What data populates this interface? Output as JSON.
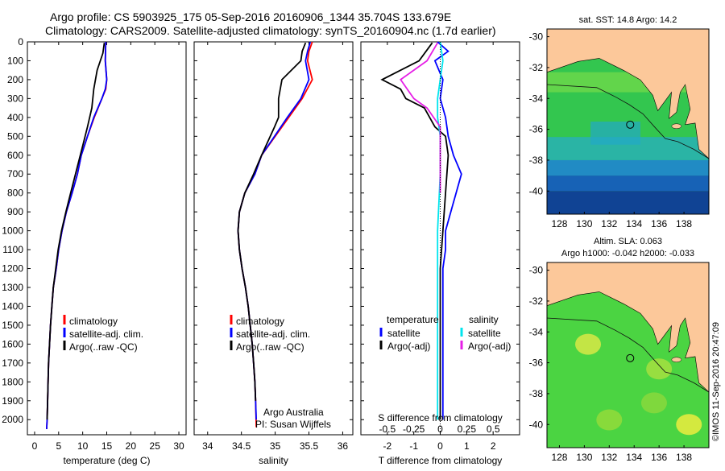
{
  "header": {
    "line1": "Argo profile: CS 5903925_175 05-Sep-2016 20160906_1344 35.704S 133.679E",
    "line2": "Climatology: CARS2009. Satellite-adjusted climatology: synTS_20160904.nc (1.7d earlier)"
  },
  "colors": {
    "climatology": "#ff0000",
    "satellite": "#0000ff",
    "argo": "#000000",
    "sal_sat": "#00e5ee",
    "sal_argo": "#e61ee6",
    "land": "#fcc89a"
  },
  "chart_data": [
    {
      "type": "line",
      "id": "temperature",
      "xlabel": "temperature (deg C)",
      "xlim": [
        -1.5,
        31.5
      ],
      "ylim": [
        2080,
        0
      ],
      "xticks": [
        0,
        5,
        10,
        15,
        20,
        25,
        30
      ],
      "yticks": [
        0,
        100,
        200,
        300,
        400,
        500,
        600,
        700,
        800,
        900,
        1000,
        1100,
        1200,
        1300,
        1400,
        1500,
        1600,
        1700,
        1800,
        1900,
        2000
      ],
      "legend": [
        "climatology",
        "satellite-adj. clim.",
        "Argo(..raw -QC)"
      ],
      "series": [
        {
          "name": "climatology",
          "color": "#ff0000",
          "x": [
            14.8,
            14.7,
            15.0,
            14.8,
            14.0,
            12.4,
            11.0,
            9.7,
            8.9,
            7.8,
            6.6,
            5.7,
            5.0,
            4.5,
            3.9,
            3.6,
            3.3,
            3.1,
            2.9,
            2.8,
            2.7,
            2.6,
            2.5
          ],
          "y": [
            0,
            100,
            200,
            250,
            300,
            400,
            500,
            600,
            700,
            800,
            900,
            1000,
            1100,
            1200,
            1300,
            1400,
            1500,
            1600,
            1700,
            1800,
            1900,
            2000,
            2050
          ]
        },
        {
          "name": "satellite-adj. clim.",
          "color": "#0000ff",
          "x": [
            14.8,
            14.7,
            15.0,
            14.7,
            14.0,
            12.3,
            11.0,
            9.7,
            8.9,
            7.8,
            6.6,
            5.7,
            5.0,
            4.5,
            3.9,
            3.6,
            3.3,
            3.1,
            2.9,
            2.8,
            2.7,
            2.6,
            2.5
          ],
          "y": [
            0,
            100,
            200,
            250,
            300,
            400,
            500,
            600,
            700,
            800,
            900,
            1000,
            1100,
            1200,
            1300,
            1400,
            1500,
            1600,
            1700,
            1800,
            1900,
            2000,
            2050
          ]
        },
        {
          "name": "Argo(..raw -QC)",
          "color": "#000000",
          "x": [
            14.5,
            14.2,
            13.0,
            12.3,
            11.9,
            11.0,
            10.0,
            9.0,
            7.5,
            6.5,
            5.6,
            4.9,
            4.4,
            3.9,
            3.6,
            3.3,
            3.1,
            2.9,
            2.8,
            2.7,
            2.6
          ],
          "y": [
            5,
            60,
            150,
            250,
            350,
            450,
            550,
            650,
            800,
            900,
            1000,
            1100,
            1200,
            1300,
            1400,
            1500,
            1600,
            1700,
            1800,
            1900,
            2000
          ]
        }
      ]
    },
    {
      "type": "line",
      "id": "salinity",
      "xlabel": "salinity",
      "xlim": [
        33.8,
        36.15
      ],
      "ylim": [
        2080,
        0
      ],
      "xticks": [
        34,
        34.5,
        35,
        35.5,
        36
      ],
      "xticklabels": [
        "34",
        "34.5",
        "35",
        "35.5",
        "36"
      ],
      "legend": [
        "climatology",
        "satellite-adj. clim.",
        "Argo(..raw -QC)"
      ],
      "annotations": [
        "Argo Australia",
        "PI: Susan Wijffels"
      ],
      "series": [
        {
          "name": "climatology",
          "color": "#ff0000",
          "x": [
            35.55,
            35.5,
            35.48,
            35.55,
            35.4,
            35.2,
            35.0,
            34.8,
            34.7,
            34.55,
            34.47,
            34.45,
            34.47,
            34.51,
            34.56,
            34.6,
            34.63,
            34.66,
            34.68,
            34.7,
            34.71,
            34.72
          ],
          "y": [
            0,
            50,
            100,
            200,
            300,
            400,
            500,
            600,
            700,
            800,
            900,
            1000,
            1100,
            1200,
            1300,
            1400,
            1500,
            1600,
            1700,
            1800,
            1900,
            2040
          ]
        },
        {
          "name": "satellite-adj. clim.",
          "color": "#0000ff",
          "x": [
            35.52,
            35.48,
            35.45,
            35.5,
            35.38,
            35.18,
            34.99,
            34.8,
            34.7,
            34.55,
            34.47,
            34.45,
            34.47,
            34.51,
            34.56,
            34.6,
            34.63,
            34.66,
            34.68,
            34.7,
            34.71,
            34.72
          ],
          "y": [
            0,
            50,
            100,
            200,
            300,
            400,
            500,
            600,
            700,
            800,
            900,
            1000,
            1100,
            1200,
            1300,
            1400,
            1500,
            1600,
            1700,
            1800,
            1900,
            2000
          ]
        },
        {
          "name": "Argo(..raw -QC)",
          "color": "#000000",
          "x": [
            35.45,
            35.4,
            35.38,
            35.1,
            35.05,
            35.05,
            34.99,
            34.8,
            34.68,
            34.55,
            34.47,
            34.45,
            34.47,
            34.51,
            34.56,
            34.6,
            34.63,
            34.66,
            34.68,
            34.7,
            34.71
          ],
          "y": [
            5,
            50,
            100,
            200,
            300,
            400,
            450,
            600,
            700,
            800,
            900,
            1000,
            1100,
            1200,
            1300,
            1400,
            1500,
            1600,
            1700,
            1800,
            1900
          ]
        }
      ]
    },
    {
      "type": "line",
      "id": "difference",
      "xlabel_top": "S difference from climatology",
      "xlabel": "T difference from climatology",
      "xlim": [
        -3,
        3
      ],
      "ylim": [
        2080,
        0
      ],
      "xticks": [
        -2,
        -1,
        0,
        1,
        2
      ],
      "xticklabels": [
        "-2",
        "-1",
        "0",
        "1",
        "2"
      ],
      "sticks": [
        -0.5,
        -0.25,
        0,
        0.25,
        0.5
      ],
      "sticklabels": [
        "-0.5",
        "-0.25",
        "0",
        "0.25",
        "0.5"
      ],
      "legend_titles": [
        "temperature",
        "salinity"
      ],
      "legend": [
        "satellite",
        "Argo(-adj)",
        "satellite",
        "Argo(-adj)"
      ],
      "series": [
        {
          "name": "satellite",
          "color": "#0000ff",
          "x": [
            -0.1,
            0.3,
            -0.2,
            0.1,
            0.0,
            0.2,
            0.3,
            0.5,
            0.8,
            0.6,
            0.4,
            0.2,
            0.2,
            0.1,
            0.1,
            0.1,
            0.1,
            0.1,
            0.1
          ],
          "y": [
            0,
            50,
            100,
            200,
            300,
            400,
            500,
            600,
            700,
            800,
            900,
            1000,
            1100,
            1200,
            1300,
            1400,
            1600,
            1800,
            2000
          ]
        },
        {
          "name": "Argo(-adj)",
          "color": "#000000",
          "x": [
            -0.3,
            -0.8,
            -2.2,
            -1.5,
            -1.3,
            -0.6,
            -0.2,
            0.2,
            0.3,
            0.2,
            0.1,
            0.0,
            0.0,
            0.0,
            0.0,
            0.0,
            0.0
          ],
          "y": [
            5,
            100,
            200,
            250,
            300,
            350,
            450,
            500,
            600,
            800,
            1000,
            1200,
            1400,
            1600,
            1800,
            1900,
            2000
          ]
        },
        {
          "name": "salinity satellite",
          "color": "#00e5ee",
          "x": [
            0.0,
            0.1,
            0.0,
            -0.1,
            -0.1,
            0.0,
            0.0,
            -0.1,
            -0.1,
            -0.1,
            -0.1,
            -0.1
          ],
          "y": [
            0,
            100,
            200,
            300,
            400,
            500,
            700,
            1000,
            1300,
            1600,
            1800,
            2000
          ]
        },
        {
          "name": "salinity Argo(-adj)",
          "color": "#e61ee6",
          "x": [
            -0.1,
            -0.5,
            -1.5,
            -1.0,
            -0.5,
            0.0,
            0.0,
            0.0
          ],
          "y": [
            5,
            100,
            200,
            300,
            350,
            450,
            600,
            800
          ]
        }
      ]
    }
  ],
  "map_sst": {
    "title": "sat. SST: 14.8  Argo: 14.2",
    "xticks": [
      "128",
      "130",
      "132",
      "134",
      "136",
      "138"
    ],
    "yticks": [
      "-30",
      "-32",
      "-34",
      "-36",
      "-38",
      "-40"
    ],
    "profile_lon": 133.68,
    "profile_lat": -35.7
  },
  "map_sla": {
    "title1": "Altim. SLA: 0.063",
    "title2": "Argo h1000: -0.042 h2000: -0.033",
    "xticks": [
      "128",
      "130",
      "132",
      "134",
      "136",
      "138"
    ],
    "yticks": [
      "-30",
      "-32",
      "-34",
      "-36",
      "-38",
      "-40"
    ],
    "profile_lon": 133.68,
    "profile_lat": -35.7
  },
  "footer_vertical": "©IMOS 11-Sep-2016 20:47:09"
}
